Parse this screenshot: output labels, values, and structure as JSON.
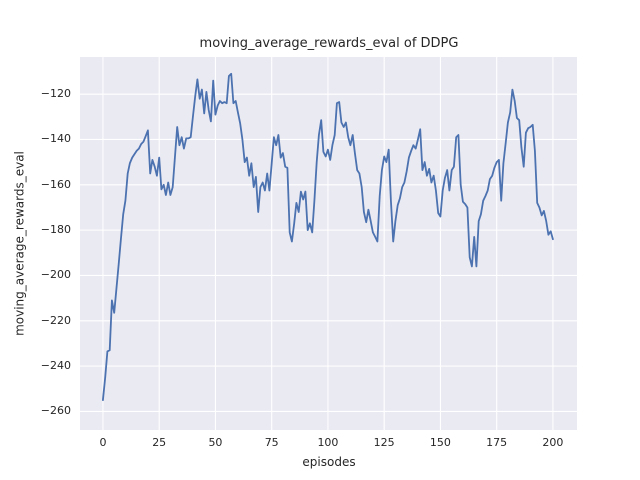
{
  "figure": {
    "background_color": "#ffffff",
    "text_color": "#262626"
  },
  "chart_data": {
    "type": "line",
    "title": "moving_average_rewards_eval of DDPG",
    "xlabel": "episodes",
    "ylabel": "moving_average_rewards_eval",
    "x_ticks": [
      0,
      25,
      50,
      75,
      100,
      125,
      150,
      175,
      200
    ],
    "y_ticks": [
      -260,
      -240,
      -220,
      -200,
      -180,
      -160,
      -140,
      -120
    ],
    "xlim": [
      -10.2,
      210.7
    ],
    "ylim": [
      -268.2,
      -103.6
    ],
    "grid": true,
    "legend": false,
    "plot_bg_color": "#EAEAF2",
    "grid_color": "#FFFFFF",
    "series": [
      {
        "name": "DDPG",
        "color": "#4C72B0",
        "line_width": 1.8,
        "x": [
          0,
          1,
          2,
          3,
          4,
          5,
          6,
          7,
          8,
          9,
          10,
          11,
          12,
          13,
          14,
          15,
          16,
          17,
          18,
          19,
          20,
          21,
          22,
          23,
          24,
          25,
          26,
          27,
          28,
          29,
          30,
          31,
          32,
          33,
          34,
          35,
          36,
          37,
          38,
          39,
          40,
          41,
          42,
          43,
          44,
          45,
          46,
          47,
          48,
          49,
          50,
          51,
          52,
          53,
          54,
          55,
          56,
          57,
          58,
          59,
          60,
          61,
          62,
          63,
          64,
          65,
          66,
          67,
          68,
          69,
          70,
          71,
          72,
          73,
          74,
          75,
          76,
          77,
          78,
          79,
          80,
          81,
          82,
          83,
          84,
          85,
          86,
          87,
          88,
          89,
          90,
          91,
          92,
          93,
          94,
          95,
          96,
          97,
          98,
          99,
          100,
          101,
          102,
          103,
          104,
          105,
          106,
          107,
          108,
          109,
          110,
          111,
          112,
          113,
          114,
          115,
          116,
          117,
          118,
          119,
          120,
          121,
          122,
          123,
          124,
          125,
          126,
          127,
          128,
          129,
          130,
          131,
          132,
          133,
          134,
          135,
          136,
          137,
          138,
          139,
          140,
          141,
          142,
          143,
          144,
          145,
          146,
          147,
          148,
          149,
          150,
          151,
          152,
          153,
          154,
          155,
          156,
          157,
          158,
          159,
          160,
          161,
          162,
          163,
          164,
          165,
          166,
          167,
          168,
          169,
          170,
          171,
          172,
          173,
          174,
          175,
          176,
          177,
          178,
          179,
          180,
          181,
          182,
          183,
          184,
          185,
          186,
          187,
          188,
          189,
          190,
          191,
          192,
          193,
          194,
          195,
          196,
          197,
          198,
          199,
          200
        ],
        "y": [
          -255,
          -245,
          -233.5,
          -233,
          -211,
          -216.5,
          -206,
          -195,
          -184,
          -173,
          -167,
          -155,
          -150.4,
          -148,
          -146.5,
          -145,
          -144,
          -142,
          -141,
          -138.5,
          -136,
          -155,
          -149,
          -152,
          -156,
          -148,
          -162,
          -160,
          -164.5,
          -159,
          -164.5,
          -161,
          -148,
          -134.5,
          -142.5,
          -139,
          -144,
          -139.5,
          -139.5,
          -139,
          -130,
          -121,
          -113.5,
          -122,
          -118,
          -128.5,
          -119,
          -127,
          -132,
          -114,
          -129,
          -125,
          -123,
          -124,
          -123.5,
          -124,
          -112,
          -111,
          -124,
          -123,
          -128,
          -133,
          -140,
          -150,
          -148,
          -156,
          -150.5,
          -161,
          -156.5,
          -172,
          -161,
          -159,
          -162.5,
          -155,
          -162.5,
          -150.5,
          -139,
          -142.5,
          -138,
          -148,
          -146,
          -152,
          -152.5,
          -181,
          -185,
          -177,
          -168,
          -172,
          -163,
          -166.5,
          -163,
          -180,
          -177,
          -181,
          -167,
          -150,
          -138,
          -131.5,
          -145.5,
          -147.5,
          -144.5,
          -149,
          -142.5,
          -138,
          -124,
          -123.5,
          -132.5,
          -134.5,
          -132.5,
          -139,
          -142.5,
          -138,
          -146,
          -153.5,
          -155,
          -161,
          -172,
          -176.5,
          -171,
          -176,
          -181,
          -183,
          -185,
          -165,
          -153.5,
          -147.5,
          -150,
          -144.5,
          -167,
          -185,
          -176,
          -169,
          -166,
          -161,
          -159,
          -154,
          -148,
          -145,
          -142.5,
          -144,
          -140,
          -135.5,
          -153.5,
          -150,
          -156,
          -153,
          -159,
          -156,
          -162.5,
          -172.5,
          -174,
          -162.5,
          -157,
          -153.5,
          -162.5,
          -153.5,
          -152,
          -139,
          -138,
          -160,
          -167.5,
          -168.5,
          -170,
          -192,
          -196,
          -183,
          -196,
          -176,
          -173,
          -167,
          -165,
          -162.5,
          -157.5,
          -156,
          -152.5,
          -150,
          -149,
          -167,
          -150.5,
          -141.5,
          -132.5,
          -128,
          -118,
          -123,
          -130.5,
          -131.5,
          -143.5,
          -152,
          -137,
          -135,
          -134.5,
          -133.5,
          -145,
          -168,
          -170,
          -173.5,
          -171.5,
          -176,
          -182,
          -180.5,
          -184
        ]
      }
    ]
  }
}
